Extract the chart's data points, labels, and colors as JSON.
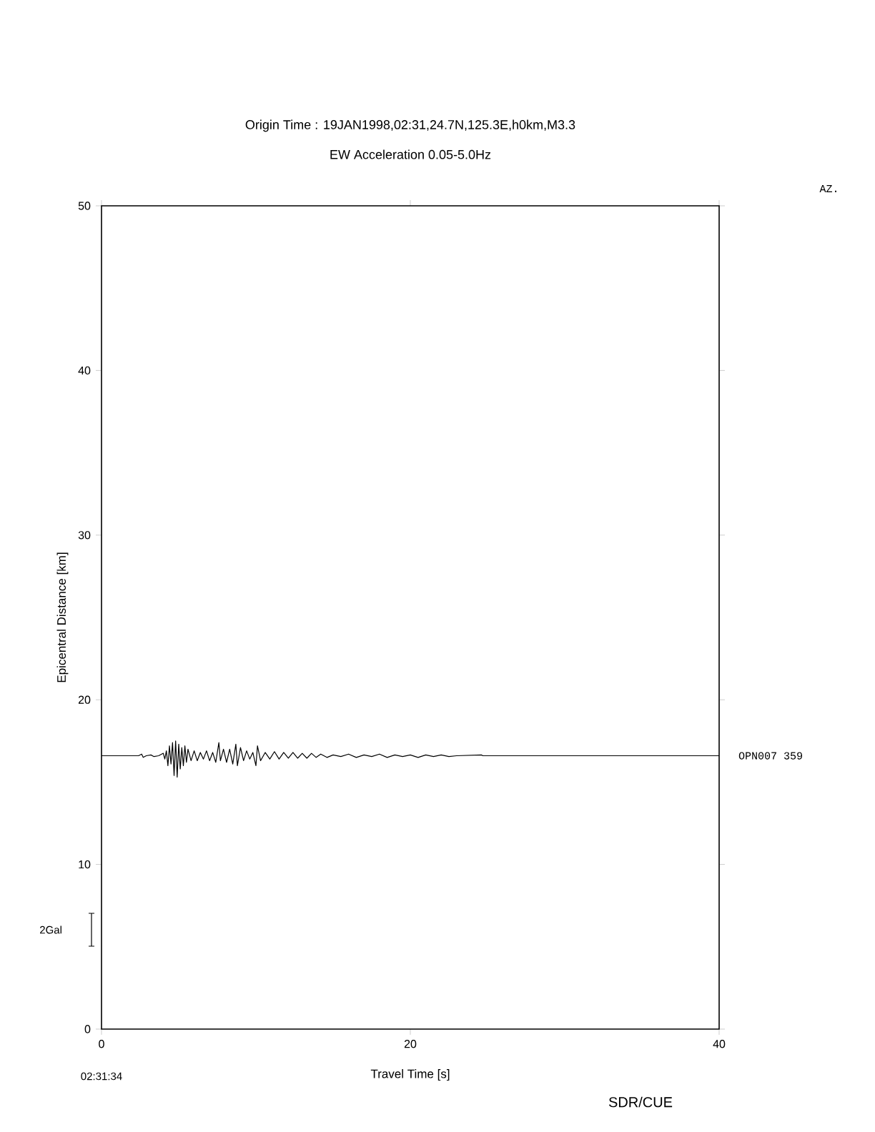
{
  "chart_data": {
    "type": "line",
    "title": "Origin Time : 19JAN1998,02:31,24.7N,125.3E,h0km,M3.3",
    "subtitle": "EW Acceleration 0.05-5.0Hz",
    "xlabel": "Travel Time [s]",
    "ylabel": "Epicentral Distance [km]",
    "xlim": [
      0,
      40
    ],
    "xticks": [
      0,
      20,
      40
    ],
    "ylim": [
      0,
      50
    ],
    "yticks": [
      0,
      10,
      20,
      30,
      40,
      50
    ],
    "series": [
      {
        "name": "OPN007 359",
        "color": "#000000",
        "x": [
          0,
          2.4,
          2.6,
          2.7,
          2.9,
          3.2,
          3.4,
          3.7,
          4.0,
          4.1,
          4.2,
          4.3,
          4.4,
          4.5,
          4.6,
          4.7,
          4.8,
          4.9,
          5.0,
          5.1,
          5.2,
          5.3,
          5.4,
          5.5,
          5.6,
          5.8,
          6.0,
          6.2,
          6.4,
          6.6,
          6.8,
          7.0,
          7.2,
          7.4,
          7.6,
          7.7,
          7.9,
          8.1,
          8.3,
          8.5,
          8.7,
          8.8,
          9.0,
          9.2,
          9.4,
          9.6,
          9.8,
          10.0,
          10.1,
          10.3,
          10.6,
          10.9,
          11.2,
          11.5,
          11.8,
          12.1,
          12.4,
          12.7,
          13.0,
          13.3,
          13.6,
          13.9,
          14.2,
          14.6,
          15.0,
          15.5,
          16.0,
          16.5,
          17.0,
          17.5,
          18.0,
          18.5,
          19.0,
          19.5,
          20.0,
          20.5,
          21.0,
          21.5,
          22.0,
          22.5,
          23.0,
          24.6,
          24.7,
          40
        ],
        "values": [
          16.6,
          16.6,
          16.7,
          16.5,
          16.6,
          16.65,
          16.55,
          16.6,
          16.75,
          16.4,
          16.9,
          16.0,
          17.2,
          16.1,
          17.4,
          15.4,
          17.5,
          15.3,
          17.3,
          15.8,
          17.1,
          16.0,
          17.2,
          16.2,
          17.0,
          16.3,
          16.9,
          16.3,
          16.8,
          16.4,
          16.9,
          16.3,
          16.8,
          16.2,
          17.4,
          16.3,
          17.0,
          16.2,
          17.0,
          16.1,
          17.3,
          16.0,
          17.1,
          16.3,
          16.9,
          16.4,
          16.8,
          16.0,
          17.2,
          16.3,
          16.8,
          16.4,
          16.85,
          16.4,
          16.8,
          16.45,
          16.8,
          16.45,
          16.75,
          16.45,
          16.75,
          16.5,
          16.7,
          16.5,
          16.65,
          16.55,
          16.7,
          16.5,
          16.65,
          16.55,
          16.7,
          16.5,
          16.65,
          16.55,
          16.65,
          16.5,
          16.65,
          16.55,
          16.65,
          16.55,
          16.6,
          16.65,
          16.6,
          16.6
        ]
      }
    ],
    "annotations": [
      "AZ.",
      "02:31:34",
      "2Gal",
      "SDR/CUE"
    ]
  }
}
